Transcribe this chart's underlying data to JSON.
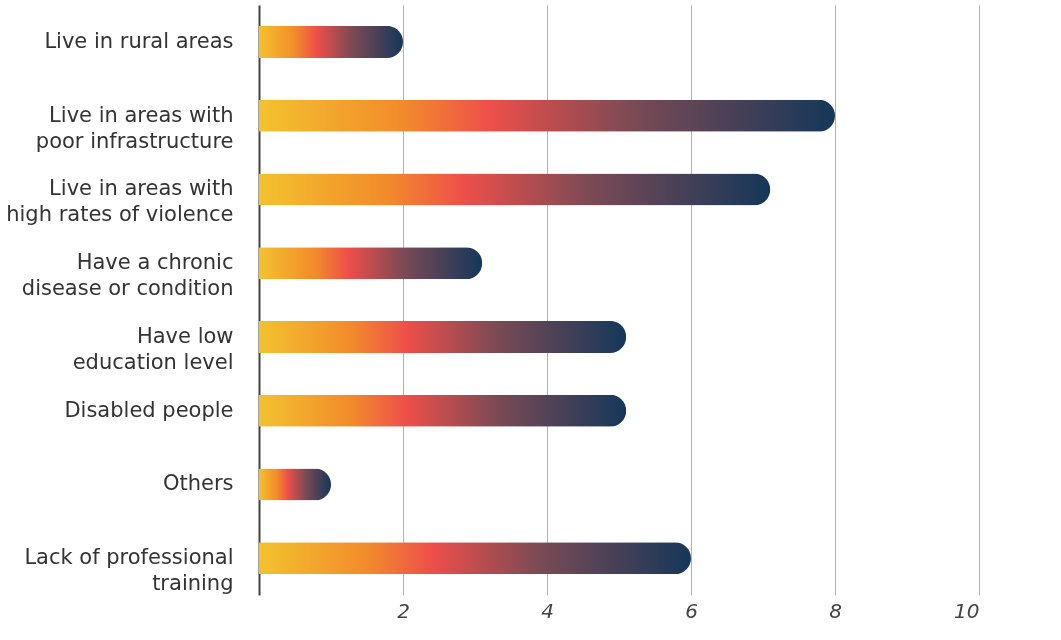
{
  "chart_data": {
    "type": "bar",
    "orientation": "horizontal",
    "categories": [
      "Live in rural areas",
      "Live in areas with poor infrastructure",
      "Live in areas with high rates of violence",
      "Have a chronic disease or condition",
      "Have low education level",
      "Disabled people",
      "Others",
      "Lack of professional training"
    ],
    "values": [
      2,
      8,
      7.1,
      3.1,
      5.1,
      5.1,
      1,
      6
    ],
    "color": "#15375a",
    "xlim": [
      0,
      10
    ],
    "xticks": [
      2,
      4,
      6,
      8,
      10
    ],
    "grid": "x"
  }
}
